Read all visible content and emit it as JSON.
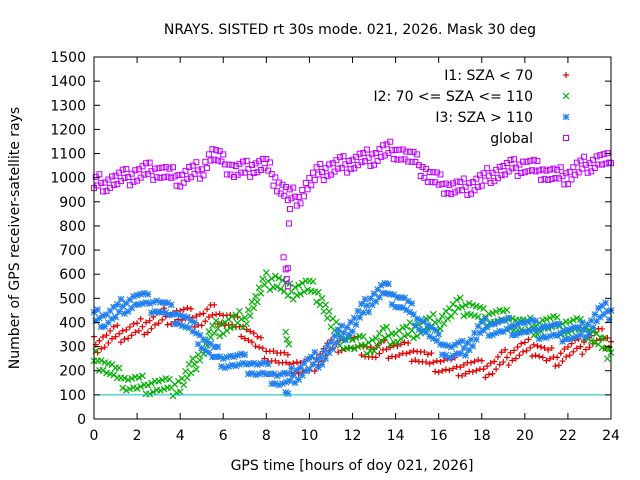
{
  "chart_data": {
    "type": "scatter",
    "title": "NRAYS. SISTED rt 30s mode. 021, 2026. Mask 30 deg",
    "xlabel": "GPS time [hours of doy 021, 2026]",
    "ylabel": "Number of GPS receiver-satellite rays",
    "xlim": [
      0,
      24
    ],
    "ylim": [
      0,
      1500
    ],
    "xticks": [
      "0",
      "2",
      "4",
      "6",
      "8",
      "10",
      "12",
      "14",
      "16",
      "18",
      "20",
      "22",
      "24"
    ],
    "yticks": [
      "0",
      "100",
      "200",
      "300",
      "400",
      "500",
      "600",
      "700",
      "800",
      "900",
      "1000",
      "1100",
      "1200",
      "1300",
      "1400",
      "1500"
    ],
    "reference_line": {
      "y": 100,
      "color": "#00c0c0"
    },
    "legend_position": "top-right",
    "series": [
      {
        "name": "I1: SZA < 70",
        "marker": "plus",
        "color": "#e00000",
        "points": [
          [
            0,
            305
          ],
          [
            0.5,
            325
          ],
          [
            1,
            350
          ],
          [
            1.5,
            360
          ],
          [
            2,
            370
          ],
          [
            2.5,
            395
          ],
          [
            3,
            415
          ],
          [
            3.5,
            430
          ],
          [
            4,
            430
          ],
          [
            4.5,
            420
          ],
          [
            5,
            415
          ],
          [
            5.5,
            440
          ],
          [
            6,
            420
          ],
          [
            6.5,
            395
          ],
          [
            7,
            370
          ],
          [
            7.5,
            320
          ],
          [
            8,
            280
          ],
          [
            8.5,
            255
          ],
          [
            9,
            230
          ],
          [
            9.5,
            215
          ],
          [
            10,
            210
          ],
          [
            10.5,
            260
          ],
          [
            11,
            300
          ],
          [
            11.5,
            320
          ],
          [
            12,
            310
          ],
          [
            12.5,
            300
          ],
          [
            13,
            270
          ],
          [
            13.5,
            290
          ],
          [
            14,
            285
          ],
          [
            14.5,
            280
          ],
          [
            15,
            270
          ],
          [
            15.5,
            240
          ],
          [
            16,
            230
          ],
          [
            16.5,
            220
          ],
          [
            17,
            215
          ],
          [
            17.5,
            215
          ],
          [
            18,
            205
          ],
          [
            18.5,
            215
          ],
          [
            19,
            245
          ],
          [
            19.5,
            275
          ],
          [
            20,
            290
          ],
          [
            20.5,
            300
          ],
          [
            21,
            260
          ],
          [
            21.5,
            255
          ],
          [
            22,
            280
          ],
          [
            22.5,
            295
          ],
          [
            23,
            325
          ],
          [
            23.5,
            340
          ],
          [
            24,
            320
          ]
        ]
      },
      {
        "name": "I2: 70 <= SZA <= 110",
        "marker": "cross",
        "color": "#00b000",
        "points": [
          [
            0,
            250
          ],
          [
            0.5,
            225
          ],
          [
            1,
            185
          ],
          [
            1.5,
            155
          ],
          [
            2,
            145
          ],
          [
            2.5,
            140
          ],
          [
            3,
            138
          ],
          [
            3.5,
            128
          ],
          [
            4,
            140
          ],
          [
            4.5,
            200
          ],
          [
            5,
            285
          ],
          [
            5.5,
            360
          ],
          [
            6,
            390
          ],
          [
            6.5,
            400
          ],
          [
            7,
            420
          ],
          [
            7.5,
            490
          ],
          [
            8,
            570
          ],
          [
            8.5,
            575
          ],
          [
            9,
            520
          ],
          [
            9.5,
            545
          ],
          [
            10,
            545
          ],
          [
            10.5,
            510
          ],
          [
            11,
            400
          ],
          [
            11.5,
            330
          ],
          [
            12,
            310
          ],
          [
            12.5,
            305
          ],
          [
            13,
            310
          ],
          [
            13.5,
            345
          ],
          [
            14,
            345
          ],
          [
            14.5,
            355
          ],
          [
            15,
            380
          ],
          [
            15.5,
            390
          ],
          [
            16,
            405
          ],
          [
            16.5,
            440
          ],
          [
            17,
            465
          ],
          [
            17.5,
            460
          ],
          [
            18,
            420
          ],
          [
            18.5,
            430
          ],
          [
            19,
            420
          ],
          [
            19.5,
            405
          ],
          [
            20,
            380
          ],
          [
            20.5,
            385
          ],
          [
            21,
            395
          ],
          [
            21.5,
            385
          ],
          [
            22,
            385
          ],
          [
            22.5,
            380
          ],
          [
            23,
            360
          ],
          [
            23.5,
            310
          ],
          [
            24,
            275
          ]
        ],
        "outliers": [
          [
            8.9,
            360
          ],
          [
            8.95,
            330
          ],
          [
            9.05,
            310
          ]
        ]
      },
      {
        "name": "I3: SZA > 110",
        "marker": "star",
        "color": "#2080f0",
        "points": [
          [
            0,
            415
          ],
          [
            0.5,
            420
          ],
          [
            1,
            440
          ],
          [
            1.5,
            480
          ],
          [
            2,
            495
          ],
          [
            2.5,
            480
          ],
          [
            3,
            470
          ],
          [
            3.5,
            440
          ],
          [
            4,
            420
          ],
          [
            4.5,
            380
          ],
          [
            5,
            330
          ],
          [
            5.5,
            275
          ],
          [
            6,
            250
          ],
          [
            6.5,
            240
          ],
          [
            7,
            230
          ],
          [
            7.5,
            210
          ],
          [
            8,
            195
          ],
          [
            8.5,
            170
          ],
          [
            9,
            160
          ],
          [
            9.5,
            200
          ],
          [
            10,
            225
          ],
          [
            10.5,
            255
          ],
          [
            11,
            300
          ],
          [
            11.5,
            350
          ],
          [
            12,
            390
          ],
          [
            12.5,
            450
          ],
          [
            13,
            510
          ],
          [
            13.5,
            535
          ],
          [
            14,
            500
          ],
          [
            14.5,
            470
          ],
          [
            15,
            415
          ],
          [
            15.5,
            370
          ],
          [
            16,
            315
          ],
          [
            16.5,
            280
          ],
          [
            17,
            280
          ],
          [
            17.5,
            320
          ],
          [
            18,
            375
          ],
          [
            18.5,
            385
          ],
          [
            19,
            380
          ],
          [
            19.5,
            385
          ],
          [
            20,
            380
          ],
          [
            20.5,
            370
          ],
          [
            21,
            365
          ],
          [
            21.5,
            355
          ],
          [
            22,
            360
          ],
          [
            22.5,
            350
          ],
          [
            23,
            390
          ],
          [
            23.5,
            440
          ],
          [
            24,
            450
          ]
        ],
        "outliers": [
          [
            8.9,
            110
          ],
          [
            9.0,
            105
          ]
        ]
      },
      {
        "name": "global",
        "marker": "square",
        "color": "#c000ff",
        "points": [
          [
            0,
            975
          ],
          [
            0.5,
            980
          ],
          [
            1,
            990
          ],
          [
            1.5,
            1000
          ],
          [
            2,
            1015
          ],
          [
            2.5,
            1025
          ],
          [
            3,
            1030
          ],
          [
            3.5,
            1010
          ],
          [
            4,
            1000
          ],
          [
            4.5,
            1020
          ],
          [
            5,
            1035
          ],
          [
            5.5,
            1100
          ],
          [
            6,
            1060
          ],
          [
            6.5,
            1030
          ],
          [
            7,
            1030
          ],
          [
            7.5,
            1050
          ],
          [
            8,
            1050
          ],
          [
            8.5,
            980
          ],
          [
            9,
            925
          ],
          [
            9.5,
            920
          ],
          [
            10,
            980
          ],
          [
            10.5,
            1020
          ],
          [
            11,
            1040
          ],
          [
            11.5,
            1050
          ],
          [
            12,
            1065
          ],
          [
            12.5,
            1075
          ],
          [
            13,
            1090
          ],
          [
            13.5,
            1110
          ],
          [
            14,
            1115
          ],
          [
            14.5,
            1090
          ],
          [
            15,
            1060
          ],
          [
            15.5,
            1010
          ],
          [
            16,
            980
          ],
          [
            16.5,
            960
          ],
          [
            17,
            955
          ],
          [
            17.5,
            970
          ],
          [
            18,
            985
          ],
          [
            18.5,
            1020
          ],
          [
            19,
            1030
          ],
          [
            19.5,
            1040
          ],
          [
            20,
            1050
          ],
          [
            20.5,
            1035
          ],
          [
            21,
            1020
          ],
          [
            21.5,
            1005
          ],
          [
            22,
            1010
          ],
          [
            22.5,
            1040
          ],
          [
            23,
            1060
          ],
          [
            23.5,
            1075
          ],
          [
            24,
            1060
          ]
        ],
        "outliers": [
          [
            8.8,
            670
          ],
          [
            8.9,
            620
          ],
          [
            8.95,
            580
          ],
          [
            9.0,
            550
          ],
          [
            9.05,
            810
          ],
          [
            9.1,
            870
          ],
          [
            9.0,
            625
          ]
        ]
      }
    ]
  }
}
